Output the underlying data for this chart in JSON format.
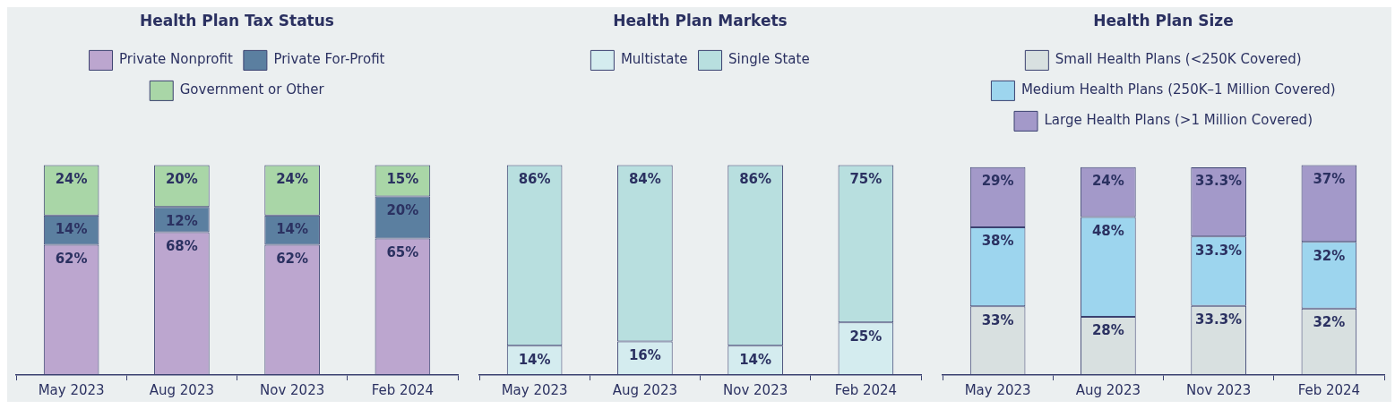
{
  "chart_data": [
    {
      "type": "bar",
      "title": "Health Plan Tax Status",
      "categories": [
        "May 2023",
        "Aug 2023",
        "Nov 2023",
        "Feb 2024"
      ],
      "stacked": true,
      "ylim": [
        0,
        100
      ],
      "tick_labels": "x",
      "legend": "top",
      "grid": false,
      "series": [
        {
          "name": "Private Nonprofit",
          "color": "#bca6cf",
          "values": [
            62,
            68,
            62,
            65
          ],
          "value_labels": [
            "62%",
            "68%",
            "62%",
            "65%"
          ]
        },
        {
          "name": "Private For-Profit",
          "color": "#5b7fa0",
          "values": [
            14,
            12,
            14,
            20
          ],
          "value_labels": [
            "14%",
            "12%",
            "14%",
            "20%"
          ]
        },
        {
          "name": "Government or Other",
          "color": "#a9d6a7",
          "values": [
            24,
            20,
            24,
            15
          ],
          "value_labels": [
            "24%",
            "20%",
            "24%",
            "15%"
          ]
        }
      ]
    },
    {
      "type": "bar",
      "title": "Health Plan Markets",
      "categories": [
        "May 2023",
        "Aug 2023",
        "Nov 2023",
        "Feb 2024"
      ],
      "stacked": true,
      "ylim": [
        0,
        100
      ],
      "tick_labels": "x",
      "legend": "top",
      "grid": false,
      "series": [
        {
          "name": "Multistate",
          "color": "#d4ecef",
          "values": [
            14,
            16,
            14,
            25
          ],
          "value_labels": [
            "14%",
            "16%",
            "14%",
            "25%"
          ]
        },
        {
          "name": "Single State",
          "color": "#b8dfdf",
          "values": [
            86,
            84,
            86,
            75
          ],
          "value_labels": [
            "86%",
            "84%",
            "86%",
            "75%"
          ]
        }
      ]
    },
    {
      "type": "bar",
      "title": "Health Plan Size",
      "categories": [
        "May 2023",
        "Aug 2023",
        "Nov 2023",
        "Feb 2024"
      ],
      "stacked": true,
      "ylim": [
        0,
        101
      ],
      "tick_labels": "x",
      "legend": "top",
      "grid": false,
      "series": [
        {
          "name": "Small Health Plans (<250K Covered)",
          "color": "#d8e0e0",
          "values": [
            33,
            28,
            33.3,
            32
          ],
          "value_labels": [
            "33%",
            "28%",
            "33.3%",
            "32%"
          ]
        },
        {
          "name": "Medium Health Plans (250K–1 Million Covered)",
          "color": "#9dd5ee",
          "values": [
            38,
            48,
            33.3,
            32
          ],
          "value_labels": [
            "38%",
            "48%",
            "33.3%",
            "32%"
          ]
        },
        {
          "name": "Large Health Plans (>1 Million Covered)",
          "color": "#a399c9",
          "values": [
            29,
            24,
            33.3,
            37
          ],
          "value_labels": [
            "29%",
            "24%",
            "33.3%",
            "37%"
          ]
        }
      ]
    }
  ]
}
